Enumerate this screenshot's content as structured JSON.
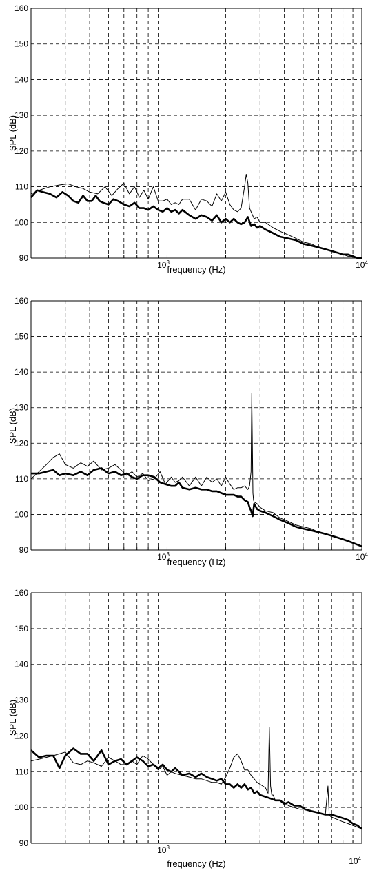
{
  "chart_data": [
    {
      "type": "line",
      "xlabel": "frequency  (Hz)",
      "ylabel": "SPL  (dB)",
      "xscale": "log",
      "xlim": [
        200,
        10000
      ],
      "ylim": [
        90,
        160
      ],
      "grid": true,
      "yticks": [
        90,
        100,
        110,
        120,
        130,
        140,
        150,
        160
      ],
      "xtick_labels": [
        {
          "base": "10",
          "exp": "3"
        },
        {
          "base": "10",
          "exp": "4"
        }
      ],
      "series": [
        {
          "style": "thin",
          "x": [
            200,
            220,
            250,
            280,
            310,
            340,
            370,
            400,
            440,
            480,
            520,
            560,
            600,
            640,
            680,
            720,
            760,
            800,
            850,
            900,
            950,
            1000,
            1050,
            1100,
            1150,
            1200,
            1300,
            1400,
            1500,
            1600,
            1700,
            1800,
            1900,
            2000,
            2100,
            2200,
            2300,
            2400,
            2500,
            2550,
            2600,
            2650,
            2700,
            2800,
            2900,
            3000,
            3200,
            3500,
            3800,
            4200,
            4600,
            5000,
            5500,
            6000,
            6500,
            7000,
            7500,
            8000,
            8500,
            9000,
            9500,
            10000
          ],
          "y": [
            108,
            109,
            110,
            110.5,
            110.8,
            110,
            109.5,
            108.5,
            108,
            110,
            107.5,
            109.5,
            111,
            108,
            110,
            107,
            109,
            106.5,
            110,
            106,
            106,
            106.5,
            105,
            105.5,
            105,
            106.5,
            106.5,
            103.5,
            106.5,
            106,
            104.5,
            108,
            106,
            108.5,
            105,
            103.5,
            103,
            104,
            110,
            113.5,
            111,
            104,
            103,
            101,
            101.5,
            100,
            100,
            98.5,
            97.5,
            96.5,
            95.5,
            94.5,
            94,
            93,
            92.5,
            92,
            91.5,
            91,
            90.5,
            90.5,
            90,
            90
          ]
        },
        {
          "style": "thick",
          "x": [
            200,
            215,
            230,
            250,
            270,
            290,
            310,
            330,
            350,
            370,
            390,
            410,
            430,
            450,
            470,
            500,
            530,
            560,
            600,
            640,
            680,
            720,
            760,
            800,
            850,
            900,
            950,
            1000,
            1050,
            1100,
            1150,
            1200,
            1300,
            1400,
            1500,
            1600,
            1700,
            1800,
            1900,
            2000,
            2100,
            2200,
            2300,
            2400,
            2500,
            2600,
            2700,
            2800,
            2900,
            3000,
            3200,
            3500,
            3800,
            4200,
            4600,
            5000,
            5500,
            6000,
            6500,
            7000,
            7500,
            8000,
            8500,
            9000,
            9500,
            10000
          ],
          "y": [
            107,
            109,
            108.5,
            108,
            107,
            108.5,
            107.5,
            106,
            105.5,
            107.5,
            106,
            106,
            107.5,
            106,
            105.5,
            105,
            106.5,
            106,
            105,
            104.5,
            105.5,
            104,
            104,
            103.5,
            104.5,
            103.5,
            103,
            104,
            103,
            103.5,
            102.5,
            103.5,
            102,
            101,
            102,
            101.5,
            100.5,
            102,
            100,
            101,
            100,
            101,
            100,
            99.5,
            100,
            101.5,
            99,
            99.5,
            98.5,
            99,
            98,
            97,
            96,
            95.5,
            95,
            94,
            93.5,
            93,
            92.5,
            92,
            91.5,
            91,
            91,
            90.5,
            90,
            90
          ]
        }
      ]
    },
    {
      "type": "line",
      "xlabel": "frequency  (Hz)",
      "ylabel": "SPL  (dB)",
      "xscale": "log",
      "xlim": [
        200,
        10000
      ],
      "ylim": [
        90,
        160
      ],
      "grid": true,
      "yticks": [
        90,
        100,
        110,
        120,
        130,
        140,
        150,
        160
      ],
      "xtick_labels": [
        {
          "base": "10",
          "exp": "3"
        },
        {
          "base": "10",
          "exp": "4"
        }
      ],
      "series": [
        {
          "style": "thin",
          "x": [
            200,
            220,
            240,
            260,
            280,
            300,
            330,
            360,
            390,
            420,
            460,
            500,
            540,
            580,
            620,
            660,
            700,
            750,
            800,
            860,
            920,
            980,
            1050,
            1100,
            1150,
            1200,
            1300,
            1400,
            1500,
            1600,
            1700,
            1800,
            1900,
            2000,
            2100,
            2200,
            2300,
            2400,
            2500,
            2600,
            2650,
            2700,
            2720,
            2740,
            2760,
            2780,
            2800,
            2900,
            3000,
            3200,
            3500,
            3800,
            4200,
            4600,
            5000,
            5500,
            6000,
            6500,
            7000,
            7500,
            8000,
            8500,
            9000,
            9500,
            10000
          ],
          "y": [
            110,
            112,
            114,
            116,
            117,
            114,
            113,
            114.5,
            113.5,
            115,
            112.5,
            113,
            114,
            112.5,
            111,
            112,
            110.5,
            111.5,
            109.5,
            110,
            112,
            108.5,
            110.5,
            109,
            109.5,
            110.5,
            108,
            110.5,
            108,
            110.5,
            109,
            110,
            108,
            110.5,
            108.5,
            107,
            107.5,
            107.5,
            108,
            107,
            108,
            112,
            134,
            120,
            106,
            104,
            103.5,
            103,
            102,
            101,
            100.5,
            99,
            98,
            97,
            96.5,
            96,
            95,
            94.5,
            94,
            93.5,
            93,
            92.5,
            92,
            91.5,
            91
          ]
        },
        {
          "style": "thick",
          "x": [
            200,
            220,
            240,
            260,
            280,
            300,
            330,
            360,
            390,
            420,
            460,
            500,
            540,
            580,
            620,
            660,
            700,
            750,
            800,
            860,
            920,
            980,
            1050,
            1100,
            1150,
            1200,
            1300,
            1400,
            1500,
            1600,
            1700,
            1800,
            1900,
            2000,
            2100,
            2200,
            2300,
            2400,
            2500,
            2600,
            2650,
            2700,
            2750,
            2800,
            2900,
            3000,
            3200,
            3500,
            3800,
            4200,
            4600,
            5000,
            5500,
            6000,
            6500,
            7000,
            7500,
            8000,
            8500,
            9000,
            9500,
            10000
          ],
          "y": [
            111.5,
            111.5,
            112,
            112.5,
            111,
            111.5,
            111,
            112,
            111,
            112.5,
            113,
            111.5,
            112,
            111,
            111.5,
            110.5,
            110,
            111,
            111,
            110.5,
            109,
            108.5,
            108,
            108,
            109,
            107.5,
            107,
            107.5,
            107,
            107,
            106.5,
            106.5,
            106,
            105.5,
            105.5,
            105.5,
            105,
            105,
            104,
            103.5,
            102,
            101,
            99.5,
            103,
            101.5,
            101,
            100.5,
            99.5,
            98.5,
            97.5,
            96.5,
            96,
            95.5,
            95,
            94.5,
            94,
            93.5,
            93,
            92.5,
            92,
            91.5,
            91
          ]
        }
      ]
    },
    {
      "type": "line",
      "xlabel": "frequency  (Hz)",
      "ylabel": "SPL  (dB)",
      "xscale": "log",
      "xlim": [
        200,
        10000
      ],
      "ylim": [
        90,
        160
      ],
      "grid": true,
      "yticks": [
        90,
        100,
        110,
        120,
        130,
        140,
        150,
        160
      ],
      "xtick_labels": [
        {
          "base": "10",
          "exp": "3"
        },
        {
          "base": "10",
          "exp": "4"
        }
      ],
      "series": [
        {
          "style": "thin",
          "x": [
            200,
            220,
            240,
            260,
            280,
            300,
            330,
            360,
            390,
            420,
            460,
            500,
            540,
            580,
            620,
            660,
            700,
            750,
            800,
            850,
            900,
            950,
            1000,
            1050,
            1100,
            1200,
            1300,
            1400,
            1500,
            1600,
            1700,
            1800,
            1900,
            2000,
            2100,
            2200,
            2300,
            2400,
            2500,
            2600,
            2700,
            2800,
            2900,
            3000,
            3100,
            3200,
            3300,
            3350,
            3400,
            3450,
            3500,
            3600,
            3800,
            4000,
            4200,
            4500,
            4800,
            5100,
            5500,
            6000,
            6500,
            6700,
            6800,
            6900,
            7200,
            7600,
            8000,
            8500,
            9000,
            9500,
            10000
          ],
          "y": [
            113,
            113.5,
            114,
            114.5,
            115,
            115.5,
            112.5,
            112,
            113,
            112.5,
            111.5,
            114,
            113,
            112,
            112,
            113,
            112,
            114.5,
            113.5,
            112,
            110.5,
            111.5,
            109,
            110,
            109.5,
            109,
            108.5,
            108,
            108,
            107.5,
            107,
            107,
            106.5,
            108.5,
            111,
            114,
            115,
            113,
            110.5,
            110.5,
            109,
            108,
            107,
            106.5,
            106,
            105.5,
            104,
            122.5,
            106,
            103.5,
            103.5,
            102,
            102,
            101.5,
            100.5,
            100,
            99.5,
            99.5,
            99,
            98.5,
            98,
            106,
            98,
            97.5,
            97,
            96.5,
            96,
            95.5,
            95,
            94.5,
            94
          ]
        },
        {
          "style": "thick",
          "x": [
            200,
            220,
            240,
            260,
            280,
            300,
            330,
            360,
            390,
            420,
            460,
            500,
            540,
            580,
            620,
            660,
            700,
            750,
            800,
            850,
            900,
            950,
            1000,
            1050,
            1100,
            1200,
            1300,
            1400,
            1500,
            1600,
            1700,
            1800,
            1900,
            2000,
            2100,
            2200,
            2300,
            2400,
            2500,
            2600,
            2700,
            2800,
            2900,
            3000,
            3200,
            3400,
            3600,
            3800,
            4000,
            4200,
            4500,
            4800,
            5100,
            5500,
            6000,
            6500,
            7000,
            7500,
            8000,
            8500,
            9000,
            9500,
            10000
          ],
          "y": [
            116,
            114,
            114.5,
            114.5,
            111,
            114.5,
            116.5,
            115,
            115,
            113,
            116,
            112,
            113,
            113.5,
            112,
            113,
            114,
            113,
            111.5,
            112,
            111,
            112,
            110.5,
            110,
            111,
            109,
            109.5,
            108.5,
            109.5,
            108.5,
            108,
            107.5,
            108,
            106.5,
            106.5,
            105.5,
            106.5,
            105.5,
            106.5,
            105,
            105.5,
            104,
            104.5,
            103.5,
            103,
            102.5,
            102,
            102,
            101,
            101.5,
            100.5,
            100.5,
            99.5,
            99,
            98.5,
            98,
            98,
            97.5,
            97,
            96.5,
            95.5,
            95,
            94
          ]
        }
      ]
    }
  ]
}
